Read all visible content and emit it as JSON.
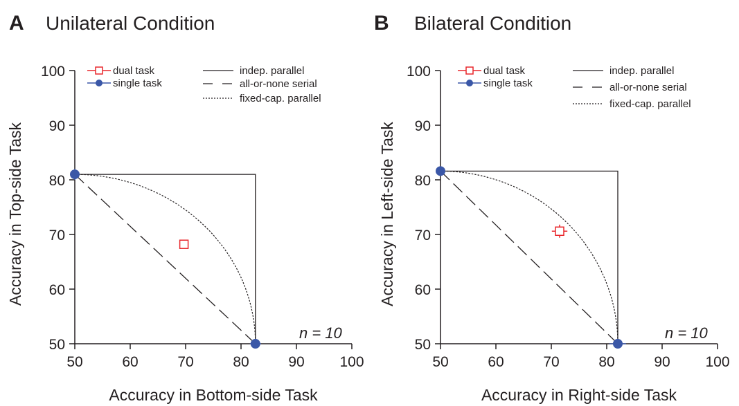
{
  "chart_data": [
    {
      "type": "scatter",
      "panel_letter": "A",
      "title": "Unilateral Condition",
      "xlabel": "Accuracy in Bottom-side Task",
      "ylabel": "Accuracy in Top-side Task",
      "xlim": [
        50,
        100
      ],
      "ylim": [
        50,
        100
      ],
      "xticks": [
        50,
        60,
        70,
        80,
        90,
        100
      ],
      "yticks": [
        50,
        60,
        70,
        80,
        90,
        100
      ],
      "xtick_labels": [
        "50",
        "60",
        "70",
        "80",
        "90",
        "100"
      ],
      "ytick_labels": [
        "50",
        "60",
        "70",
        "80",
        "90",
        "100"
      ],
      "grid": false,
      "annotation": "n = 10",
      "series": [
        {
          "name": "dual task",
          "marker": "open-square",
          "color": "#e8262b",
          "points": [
            {
              "x": 69.7,
              "y": 68.2,
              "xerr": 0.8,
              "yerr": 0.8
            }
          ]
        },
        {
          "name": "single task",
          "marker": "filled-circle",
          "color": "#3a57a7",
          "points": [
            {
              "x": 50,
              "y": 81.0,
              "xerr": 0,
              "yerr": 1.0
            },
            {
              "x": 82.6,
              "y": 50,
              "xerr": 1.0,
              "yerr": 0
            }
          ]
        }
      ],
      "model_lines": [
        {
          "name": "indep. parallel",
          "style": "solid"
        },
        {
          "name": "all-or-none serial",
          "style": "dashed"
        },
        {
          "name": "fixed-cap. parallel",
          "style": "dotted"
        }
      ]
    },
    {
      "type": "scatter",
      "panel_letter": "B",
      "title": "Bilateral Condition",
      "xlabel": "Accuracy in Right-side Task",
      "ylabel": "Accuracy in Left-side Task",
      "xlim": [
        50,
        100
      ],
      "ylim": [
        50,
        100
      ],
      "xticks": [
        50,
        60,
        70,
        80,
        90,
        100
      ],
      "yticks": [
        50,
        60,
        70,
        80,
        90,
        100
      ],
      "xtick_labels": [
        "50",
        "60",
        "70",
        "80",
        "90",
        "100"
      ],
      "ytick_labels": [
        "50",
        "60",
        "70",
        "80",
        "90",
        "100"
      ],
      "grid": false,
      "annotation": "n = 10",
      "series": [
        {
          "name": "dual task",
          "marker": "open-square",
          "color": "#e8262b",
          "points": [
            {
              "x": 71.5,
              "y": 70.6,
              "xerr": 1.4,
              "yerr": 1.2
            }
          ]
        },
        {
          "name": "single task",
          "marker": "filled-circle",
          "color": "#3a57a7",
          "points": [
            {
              "x": 50,
              "y": 81.6,
              "xerr": 0,
              "yerr": 0.5
            },
            {
              "x": 82.0,
              "y": 50,
              "xerr": 1.5,
              "yerr": 0
            }
          ]
        }
      ],
      "model_lines": [
        {
          "name": "indep. parallel",
          "style": "solid"
        },
        {
          "name": "all-or-none serial",
          "style": "dashed"
        },
        {
          "name": "fixed-cap. parallel",
          "style": "dotted"
        }
      ]
    }
  ]
}
